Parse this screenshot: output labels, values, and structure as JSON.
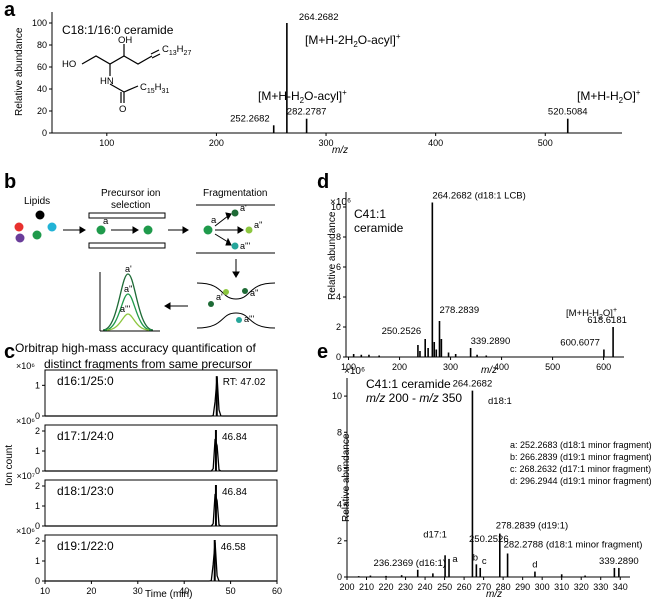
{
  "panels": {
    "a": "a",
    "b": "b",
    "c": "c",
    "d": "d",
    "e": "e"
  },
  "schematic": {
    "lipids": "Lipids",
    "precursor_line1": "Precursor ion",
    "precursor_line2": "selection",
    "fragmentation": "Fragmentation",
    "caption_line1": "Orbitrap high-mass accuracy quantification of",
    "caption_line2": "distinct fragments from same precursor",
    "ion_a": "a",
    "ion_a1": "a'",
    "ion_a2": "a''",
    "ion_a3": "a'''",
    "colors": {
      "red": "#e8312f",
      "purple": "#6a3d9a",
      "green": "#1f9a4b",
      "cyan": "#22b3d6",
      "black": "#000000",
      "dark_green": "#1e6b36",
      "light_green": "#8cc63f",
      "teal": "#26a69a",
      "peak_green": "#2e8b3a"
    }
  },
  "structure": {
    "title": "C18:1/16:0 ceramide",
    "oh_top": "OH",
    "ho": "HO",
    "hn": "HN",
    "c13": "C13H27",
    "c15": "C15H31",
    "o": "O"
  },
  "chart_data": [
    {
      "id": "a",
      "type": "bar",
      "title": "",
      "xlabel": "m/z",
      "ylabel": "Relative abundance",
      "xlim": [
        50,
        570
      ],
      "ylim": [
        0,
        110
      ],
      "xticks": [
        100,
        200,
        300,
        400,
        500
      ],
      "yticks": [
        0,
        20,
        40,
        60,
        80,
        100
      ],
      "peaks": [
        {
          "x": 252.2682,
          "y": 7,
          "label": "252.2682"
        },
        {
          "x": 264.2682,
          "y": 100,
          "label": "264.2682"
        },
        {
          "x": 282.2787,
          "y": 13,
          "label": "282.2787"
        },
        {
          "x": 520.5084,
          "y": 13,
          "label": "520.5084"
        }
      ],
      "annotations": [
        "[M+H-2H2O-acyl]+",
        "[M+H-H2O-acyl]+",
        "[M+H-H2O]+"
      ]
    },
    {
      "id": "c",
      "type": "line",
      "xlabel": "Time (min)",
      "ylabel": "Ion count",
      "xlim": [
        10,
        60
      ],
      "xticks": [
        10,
        20,
        30,
        40,
        50,
        60
      ],
      "subplots": [
        {
          "name": "d16:1/25:0",
          "scale": "×10⁶",
          "ylim": [
            0,
            1.5
          ],
          "yticks": [
            0,
            1
          ],
          "peak_x": 47.02,
          "peak_y": 1.3,
          "label": "RT: 47.02"
        },
        {
          "name": "d17:1/24:0",
          "scale": "×10⁶",
          "ylim": [
            0,
            2.3
          ],
          "yticks": [
            0,
            1,
            2
          ],
          "peak_x": 46.84,
          "peak_y": 2.05,
          "label": "46.84"
        },
        {
          "name": "d18:1/23:0",
          "scale": "×10⁷",
          "ylim": [
            0,
            2.3
          ],
          "yticks": [
            0,
            1,
            2
          ],
          "peak_x": 46.84,
          "peak_y": 2.05,
          "label": "46.84"
        },
        {
          "name": "d19:1/22:0",
          "scale": "×10⁶",
          "ylim": [
            0,
            2.3
          ],
          "yticks": [
            0,
            1,
            2
          ],
          "peak_x": 46.58,
          "peak_y": 2.05,
          "label": "46.58"
        }
      ]
    },
    {
      "id": "d",
      "type": "bar",
      "title": "C41:1 ceramide",
      "scale": "×10⁶",
      "xlabel": "m/z",
      "ylabel": "Relative abundance",
      "xlim": [
        95,
        640
      ],
      "ylim": [
        0,
        11
      ],
      "xticks": [
        100,
        200,
        300,
        400,
        500,
        600
      ],
      "yticks": [
        0,
        2,
        4,
        6,
        8,
        10
      ],
      "peaks": [
        {
          "x": 110,
          "y": 0.2
        },
        {
          "x": 125,
          "y": 0.15
        },
        {
          "x": 140,
          "y": 0.15
        },
        {
          "x": 160,
          "y": 0.1
        },
        {
          "x": 236,
          "y": 0.8
        },
        {
          "x": 240,
          "y": 0.4
        },
        {
          "x": 250.2526,
          "y": 1.2,
          "label": "250.2526"
        },
        {
          "x": 256,
          "y": 0.6
        },
        {
          "x": 264.2682,
          "y": 10.3,
          "label": "264.2682 (d18:1 LCB)"
        },
        {
          "x": 268,
          "y": 1.0
        },
        {
          "x": 272,
          "y": 0.5
        },
        {
          "x": 278.2839,
          "y": 2.4,
          "label": "278.2839"
        },
        {
          "x": 282,
          "y": 1.2
        },
        {
          "x": 296,
          "y": 0.3
        },
        {
          "x": 310,
          "y": 0.2
        },
        {
          "x": 339.289,
          "y": 0.6,
          "label": "339.2890"
        },
        {
          "x": 352,
          "y": 0.15
        },
        {
          "x": 370,
          "y": 0.1
        },
        {
          "x": 600.6077,
          "y": 0.5,
          "label": "600.6077"
        },
        {
          "x": 618.6181,
          "y": 2.0,
          "label": "618.6181"
        }
      ],
      "annotations": [
        "[M+H-H2O]+"
      ]
    },
    {
      "id": "e",
      "type": "bar",
      "title": "C41:1 ceramide",
      "subtitle": "m/z 200 - m/z 350",
      "scale": "×10⁶",
      "xlabel": "m/z",
      "ylabel": "Relative abundance",
      "xlim": [
        200,
        345
      ],
      "ylim": [
        0,
        11
      ],
      "xticks": [
        200,
        210,
        220,
        230,
        240,
        250,
        260,
        270,
        280,
        290,
        300,
        310,
        320,
        330,
        340
      ],
      "yticks": [
        0,
        2,
        4,
        6,
        8,
        10
      ],
      "peaks": [
        {
          "x": 206,
          "y": 0.05
        },
        {
          "x": 212,
          "y": 0.08
        },
        {
          "x": 220,
          "y": 0.06
        },
        {
          "x": 228,
          "y": 0.1
        },
        {
          "x": 236.2369,
          "y": 0.4,
          "label": "236.2369 (d16:1)"
        },
        {
          "x": 244,
          "y": 0.2
        },
        {
          "x": 250.2526,
          "y": 1.2,
          "label": "d17:1"
        },
        {
          "x": 252.2683,
          "y": 1.0,
          "label": "a"
        },
        {
          "x": 264.2682,
          "y": 10.3,
          "label": "264.2682"
        },
        {
          "x": 266.2839,
          "y": 0.7,
          "label": "b"
        },
        {
          "x": 268.2632,
          "y": 0.5,
          "label": "c"
        },
        {
          "x": 278.2839,
          "y": 2.4,
          "label": "278.2839 (d19:1)"
        },
        {
          "x": 282.2788,
          "y": 1.3,
          "label": "282.2788 (d18:1 minor fragment)"
        },
        {
          "x": 296.2944,
          "y": 0.3,
          "label": "d"
        },
        {
          "x": 310,
          "y": 0.15
        },
        {
          "x": 322,
          "y": 0.08
        },
        {
          "x": 337,
          "y": 0.5
        },
        {
          "x": 339.289,
          "y": 0.5,
          "label": "339.2890"
        }
      ],
      "annotations": [
        "250.2526",
        "d18:1"
      ],
      "legend": [
        "a: 252.2683 (d18:1 minor fragment)",
        "b: 266.2839 (d19:1 minor fragment)",
        "c: 268.2632 (d17:1 minor fragment)",
        "d: 296.2944 (d19:1 minor fragment)"
      ]
    }
  ]
}
